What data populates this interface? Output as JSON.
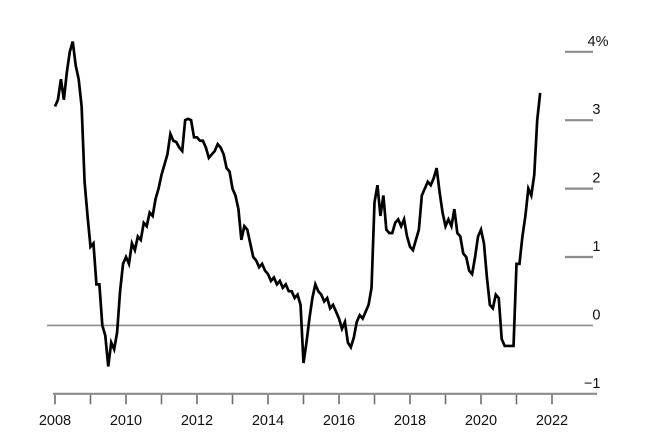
{
  "chart_data": {
    "type": "line",
    "unit": "%",
    "frequency": "monthly",
    "start": "2008-01",
    "end": "2021-09",
    "values": [
      3.2,
      3.3,
      3.6,
      3.3,
      3.7,
      4.0,
      4.15,
      3.8,
      3.6,
      3.2,
      2.1,
      1.6,
      1.15,
      1.2,
      0.6,
      0.6,
      0.0,
      -0.15,
      -0.6,
      -0.25,
      -0.35,
      -0.1,
      0.5,
      0.9,
      1.0,
      0.9,
      1.2,
      1.1,
      1.3,
      1.25,
      1.5,
      1.45,
      1.65,
      1.6,
      1.85,
      2.0,
      2.2,
      2.35,
      2.5,
      2.8,
      2.7,
      2.68,
      2.6,
      2.55,
      3.0,
      3.02,
      3.0,
      2.75,
      2.75,
      2.7,
      2.7,
      2.6,
      2.45,
      2.5,
      2.55,
      2.65,
      2.6,
      2.5,
      2.3,
      2.25,
      2.0,
      1.9,
      1.7,
      1.25,
      1.45,
      1.4,
      1.2,
      1.0,
      0.95,
      0.85,
      0.9,
      0.8,
      0.75,
      0.65,
      0.7,
      0.6,
      0.65,
      0.55,
      0.6,
      0.5,
      0.5,
      0.4,
      0.45,
      0.3,
      -0.55,
      -0.25,
      0.1,
      0.4,
      0.6,
      0.5,
      0.45,
      0.35,
      0.4,
      0.25,
      0.3,
      0.2,
      0.1,
      -0.05,
      0.05,
      -0.25,
      -0.32,
      -0.18,
      0.05,
      0.15,
      0.1,
      0.2,
      0.3,
      0.55,
      1.8,
      2.05,
      1.6,
      1.9,
      1.4,
      1.35,
      1.35,
      1.5,
      1.55,
      1.45,
      1.55,
      1.3,
      1.15,
      1.1,
      1.25,
      1.4,
      1.9,
      2.0,
      2.1,
      2.05,
      2.15,
      2.3,
      1.95,
      1.65,
      1.45,
      1.55,
      1.45,
      1.7,
      1.35,
      1.3,
      1.05,
      1.0,
      0.8,
      0.75,
      1.0,
      1.3,
      1.4,
      1.2,
      0.7,
      0.3,
      0.25,
      0.45,
      0.4,
      -0.2,
      -0.3,
      -0.3,
      -0.3,
      -0.3,
      0.9,
      0.9,
      1.3,
      1.6,
      2.0,
      1.9,
      2.2,
      3.0,
      3.4
    ],
    "x_axis": {
      "tick_years": [
        2008,
        2009,
        2010,
        2011,
        2012,
        2013,
        2014,
        2015,
        2016,
        2017,
        2018,
        2019,
        2020,
        2021,
        2022
      ],
      "tick_labels": [
        {
          "year": 2008,
          "text": "2008"
        },
        {
          "year": 2010,
          "text": "2010"
        },
        {
          "year": 2012,
          "text": "2012"
        },
        {
          "year": 2014,
          "text": "2014"
        },
        {
          "year": 2016,
          "text": "2016"
        },
        {
          "year": 2018,
          "text": "2018"
        },
        {
          "year": 2020,
          "text": "2020"
        },
        {
          "year": 2022,
          "text": "2022"
        }
      ]
    },
    "y_axis": {
      "range": [
        -1,
        4
      ],
      "ticks": [
        {
          "value": 4,
          "text": "4%"
        },
        {
          "value": 3,
          "text": "3"
        },
        {
          "value": 2,
          "text": "2"
        },
        {
          "value": 1,
          "text": "1"
        },
        {
          "value": 0,
          "text": "0"
        },
        {
          "value": -1,
          "text": "−1"
        }
      ]
    },
    "grid": {
      "zero_line": true,
      "legend": "none",
      "title": ""
    }
  },
  "colors": {
    "line": "#000000",
    "axis": "#8c8c8c",
    "tick": "#6e6e6e",
    "label": "#111111",
    "background": "#ffffff"
  }
}
